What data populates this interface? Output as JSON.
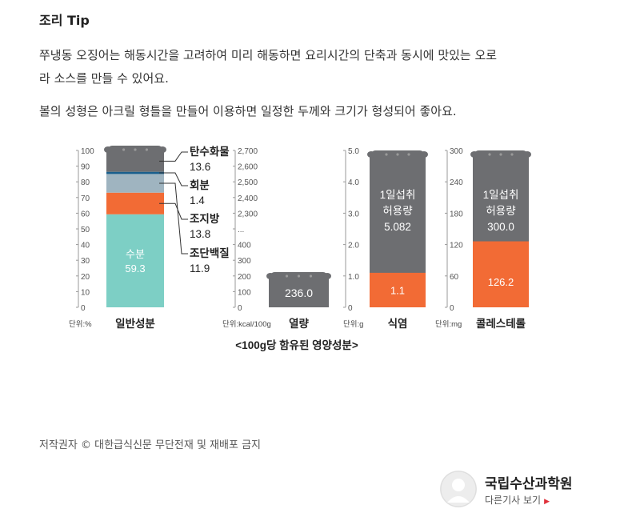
{
  "article": {
    "tip_title": "조리 Tip",
    "paragraph1_line1": "쭈냉동 오징어는 해동시간을 고려하여 미리 해동하면 요리시간의 단축과 동시에 맛있는 오로",
    "paragraph1_line2": "라 소스를 만들 수 있어요.",
    "paragraph2": "볼의 성형은 아크릴 형틀을 만들어 이용하면 일정한 두께와 크기가 형성되어 좋아요."
  },
  "colors": {
    "grey": "#6d6e71",
    "teal": "#7dcfc5",
    "orange": "#f26b35",
    "light_blue_grey": "#9fb4c0",
    "dark_blue": "#1a5f8c"
  },
  "chart_data": [
    {
      "type": "bar",
      "name": "일반성분",
      "unit": "단위:%",
      "ylim": [
        0,
        100
      ],
      "ticks": [
        "100",
        "90",
        "80",
        "70",
        "60",
        "50",
        "40",
        "30",
        "20",
        "10",
        "0"
      ],
      "stack": [
        {
          "label": "수분",
          "value": 59.3,
          "value_text": "59.3"
        },
        {
          "label": "조지방",
          "value": 13.8,
          "value_text": "13.8"
        },
        {
          "label": "조단백질",
          "value": 11.9,
          "value_text": "11.9"
        },
        {
          "label": "회분",
          "value": 1.4,
          "value_text": "1.4"
        },
        {
          "label": "탄수화물",
          "value": 13.6,
          "value_text": "13.6"
        }
      ]
    },
    {
      "type": "bar",
      "name": "열량",
      "unit": "단위:kcal/100g",
      "ticks": [
        "2,700",
        "2,600",
        "2,500",
        "2,400",
        "2,300",
        "...",
        "400",
        "300",
        "200",
        "100",
        "0"
      ],
      "value": 236.0,
      "value_text": "236.0"
    },
    {
      "type": "bar",
      "name": "식염",
      "unit": "단위:g",
      "ylim": [
        0,
        5.0
      ],
      "ticks": [
        "5.0",
        "4.0",
        "3.0",
        "2.0",
        "1.0",
        "0"
      ],
      "limit_label": "1일섭취\n허용량",
      "limit_value": 5.082,
      "limit_text": "5.082",
      "value": 1.1,
      "value_text": "1.1"
    },
    {
      "type": "bar",
      "name": "콜레스테롤",
      "unit": "단위:mg",
      "ylim": [
        0,
        300
      ],
      "ticks": [
        "300",
        "240",
        "180",
        "120",
        "60",
        "0"
      ],
      "limit_label": "1일섭취\n허용량",
      "limit_value": 300.0,
      "limit_text": "300.0",
      "value": 126.2,
      "value_text": "126.2"
    }
  ],
  "caption": "<100g당 함유된 영양성분>",
  "footer": {
    "copyright": "저작권자 © 대한급식신문 무단전재 및 재배포 금지",
    "author_name": "국립수산과학원",
    "author_link": "다른기사 보기"
  }
}
